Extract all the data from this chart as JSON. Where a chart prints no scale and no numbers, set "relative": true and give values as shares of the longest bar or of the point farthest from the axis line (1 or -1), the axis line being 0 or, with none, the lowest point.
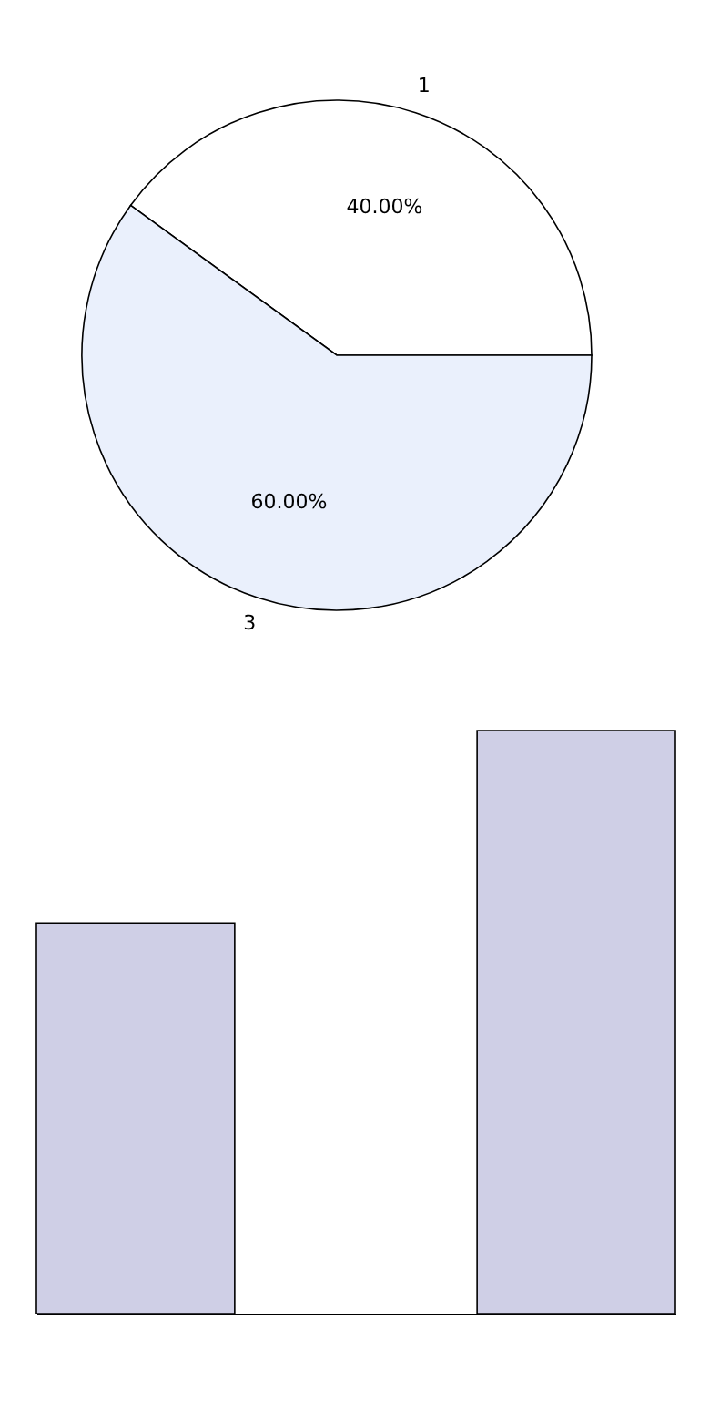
{
  "chart_data": [
    {
      "type": "pie",
      "categories": [
        "1",
        "3"
      ],
      "values": [
        40,
        60
      ],
      "colors": [
        "#ffffff",
        "#eaf0fc"
      ],
      "value_labels": [
        "40.00%",
        "60.00%"
      ]
    },
    {
      "type": "bar",
      "categories": [
        null,
        null
      ],
      "values": [
        0.67,
        1
      ],
      "color": "#cfcfe6",
      "relative": true
    }
  ]
}
